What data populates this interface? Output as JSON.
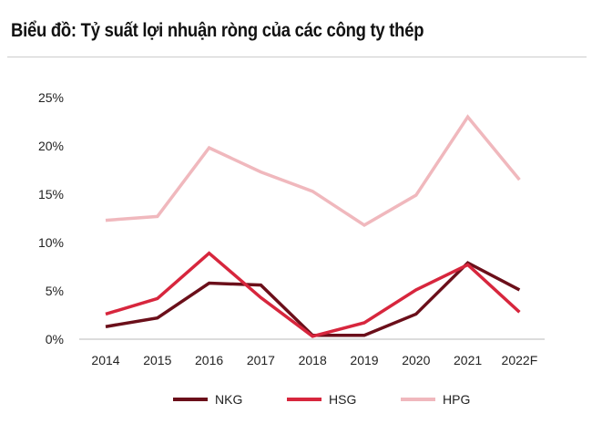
{
  "chart_data": {
    "type": "line",
    "title": "Biểu đồ: Tỷ suất lợi nhuận ròng của các công ty thép",
    "categories": [
      "2014",
      "2015",
      "2016",
      "2017",
      "2018",
      "2019",
      "2020",
      "2021",
      "2022F"
    ],
    "ylim": [
      0,
      25
    ],
    "yticks": [
      "0%",
      "5%",
      "10%",
      "15%",
      "20%",
      "25%"
    ],
    "grid": false,
    "legend": "bottom",
    "series": [
      {
        "name": "NKG",
        "color": "#6b0f1a",
        "values": [
          1.3,
          2.2,
          5.8,
          5.6,
          0.4,
          0.4,
          2.6,
          7.9,
          5.1
        ]
      },
      {
        "name": "HSG",
        "color": "#d7263d",
        "values": [
          2.6,
          4.2,
          8.9,
          4.3,
          0.3,
          1.7,
          5.1,
          7.7,
          2.8
        ]
      },
      {
        "name": "HPG",
        "color": "#f0b8bd",
        "values": [
          12.3,
          12.7,
          19.8,
          17.3,
          15.3,
          11.8,
          14.9,
          23.0,
          16.5
        ]
      }
    ]
  }
}
